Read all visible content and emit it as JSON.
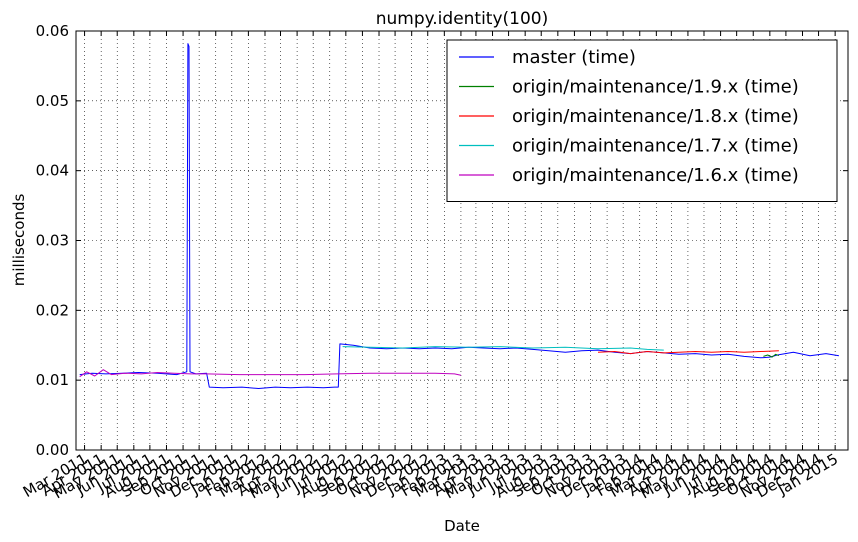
{
  "chart_data": {
    "type": "line",
    "title": "numpy.identity(100)",
    "xlabel": "Date",
    "ylabel": "milliseconds",
    "xlim": [
      "2011-02-13",
      "2015-01-25"
    ],
    "ylim": [
      0.0,
      0.06
    ],
    "y_ticks": [
      0.0,
      0.01,
      0.02,
      0.03,
      0.04,
      0.05,
      0.06
    ],
    "y_tick_labels": [
      "0.00",
      "0.01",
      "0.02",
      "0.03",
      "0.04",
      "0.05",
      "0.06"
    ],
    "x_ticks": [
      {
        "date": "2011-03-01",
        "label": "Mar 2011"
      },
      {
        "date": "2011-04-01",
        "label": "Apr 2011"
      },
      {
        "date": "2011-05-01",
        "label": "May 2011"
      },
      {
        "date": "2011-06-01",
        "label": "Jun 2011"
      },
      {
        "date": "2011-07-01",
        "label": "Jul 2011"
      },
      {
        "date": "2011-08-01",
        "label": "Aug 2011"
      },
      {
        "date": "2011-09-01",
        "label": "Sep 2011"
      },
      {
        "date": "2011-10-01",
        "label": "Oct 2011"
      },
      {
        "date": "2011-11-01",
        "label": "Nov 2011"
      },
      {
        "date": "2011-12-01",
        "label": "Dec 2011"
      },
      {
        "date": "2012-01-01",
        "label": "Jan 2012"
      },
      {
        "date": "2012-02-01",
        "label": "Feb 2012"
      },
      {
        "date": "2012-03-01",
        "label": "Mar 2012"
      },
      {
        "date": "2012-04-01",
        "label": "Apr 2012"
      },
      {
        "date": "2012-05-01",
        "label": "May 2012"
      },
      {
        "date": "2012-06-01",
        "label": "Jun 2012"
      },
      {
        "date": "2012-07-01",
        "label": "Jul 2012"
      },
      {
        "date": "2012-08-01",
        "label": "Aug 2012"
      },
      {
        "date": "2012-09-01",
        "label": "Sep 2012"
      },
      {
        "date": "2012-10-01",
        "label": "Oct 2012"
      },
      {
        "date": "2012-11-01",
        "label": "Nov 2012"
      },
      {
        "date": "2012-12-01",
        "label": "Dec 2012"
      },
      {
        "date": "2013-01-01",
        "label": "Jan 2013"
      },
      {
        "date": "2013-02-01",
        "label": "Feb 2013"
      },
      {
        "date": "2013-03-01",
        "label": "Mar 2013"
      },
      {
        "date": "2013-04-01",
        "label": "Apr 2013"
      },
      {
        "date": "2013-05-01",
        "label": "May 2013"
      },
      {
        "date": "2013-06-01",
        "label": "Jun 2013"
      },
      {
        "date": "2013-07-01",
        "label": "Jul 2013"
      },
      {
        "date": "2013-08-01",
        "label": "Aug 2013"
      },
      {
        "date": "2013-09-01",
        "label": "Sep 2013"
      },
      {
        "date": "2013-10-01",
        "label": "Oct 2013"
      },
      {
        "date": "2013-11-01",
        "label": "Nov 2013"
      },
      {
        "date": "2013-12-01",
        "label": "Dec 2013"
      },
      {
        "date": "2014-01-01",
        "label": "Jan 2014"
      },
      {
        "date": "2014-02-01",
        "label": "Feb 2014"
      },
      {
        "date": "2014-03-01",
        "label": "Mar 2014"
      },
      {
        "date": "2014-04-01",
        "label": "Apr 2014"
      },
      {
        "date": "2014-05-01",
        "label": "May 2014"
      },
      {
        "date": "2014-06-01",
        "label": "Jun 2014"
      },
      {
        "date": "2014-07-01",
        "label": "Jul 2014"
      },
      {
        "date": "2014-08-01",
        "label": "Aug 2014"
      },
      {
        "date": "2014-09-01",
        "label": "Sep 2014"
      },
      {
        "date": "2014-10-01",
        "label": "Oct 2014"
      },
      {
        "date": "2014-11-01",
        "label": "Nov 2014"
      },
      {
        "date": "2014-12-01",
        "label": "Dec 2014"
      },
      {
        "date": "2015-01-01",
        "label": "Jan 2015"
      }
    ],
    "grid": true,
    "legend_position": "top-right",
    "series": [
      {
        "name": "master (time)",
        "color": "#0000ff",
        "points": [
          [
            "2011-02-20",
            0.0108
          ],
          [
            "2011-03-15",
            0.011
          ],
          [
            "2011-04-10",
            0.0109
          ],
          [
            "2011-05-10",
            0.011
          ],
          [
            "2011-06-10",
            0.0111
          ],
          [
            "2011-07-15",
            0.011
          ],
          [
            "2011-08-20",
            0.0108
          ],
          [
            "2011-09-08",
            0.0112
          ],
          [
            "2011-09-10",
            0.0582
          ],
          [
            "2011-09-12",
            0.0578
          ],
          [
            "2011-09-14",
            0.0112
          ],
          [
            "2011-09-25",
            0.0109
          ],
          [
            "2011-10-15",
            0.011
          ],
          [
            "2011-10-20",
            0.009
          ],
          [
            "2011-11-15",
            0.0089
          ],
          [
            "2011-12-20",
            0.009
          ],
          [
            "2012-01-20",
            0.0088
          ],
          [
            "2012-02-20",
            0.009
          ],
          [
            "2012-03-20",
            0.0089
          ],
          [
            "2012-04-20",
            0.009
          ],
          [
            "2012-05-20",
            0.0089
          ],
          [
            "2012-06-10",
            0.009
          ],
          [
            "2012-06-17",
            0.009
          ],
          [
            "2012-06-20",
            0.0152
          ],
          [
            "2012-07-15",
            0.015
          ],
          [
            "2012-08-15",
            0.0146
          ],
          [
            "2012-09-15",
            0.0145
          ],
          [
            "2012-10-15",
            0.0146
          ],
          [
            "2012-11-15",
            0.0145
          ],
          [
            "2012-12-15",
            0.0146
          ],
          [
            "2013-01-15",
            0.0145
          ],
          [
            "2013-02-15",
            0.0147
          ],
          [
            "2013-03-15",
            0.0146
          ],
          [
            "2013-04-15",
            0.0145
          ],
          [
            "2013-05-15",
            0.0146
          ],
          [
            "2013-06-15",
            0.0144
          ],
          [
            "2013-07-15",
            0.0142
          ],
          [
            "2013-08-15",
            0.014
          ],
          [
            "2013-09-15",
            0.0142
          ],
          [
            "2013-10-15",
            0.0143
          ],
          [
            "2013-11-15",
            0.014
          ],
          [
            "2013-12-15",
            0.0138
          ],
          [
            "2014-01-15",
            0.0141
          ],
          [
            "2014-02-15",
            0.0139
          ],
          [
            "2014-03-15",
            0.0137
          ],
          [
            "2014-04-15",
            0.0138
          ],
          [
            "2014-05-15",
            0.0136
          ],
          [
            "2014-06-15",
            0.0137
          ],
          [
            "2014-07-15",
            0.0134
          ],
          [
            "2014-08-15",
            0.0132
          ],
          [
            "2014-09-01",
            0.0133
          ],
          [
            "2014-09-15",
            0.0136
          ],
          [
            "2014-10-15",
            0.014
          ],
          [
            "2014-11-15",
            0.0135
          ],
          [
            "2014-12-15",
            0.0138
          ],
          [
            "2015-01-08",
            0.0135
          ]
        ]
      },
      {
        "name": "origin/maintenance/1.9.x (time)",
        "color": "#008000",
        "points": [
          [
            "2014-08-20",
            0.0134
          ],
          [
            "2014-08-28",
            0.0136
          ],
          [
            "2014-09-05",
            0.0133
          ],
          [
            "2014-09-12",
            0.0137
          ],
          [
            "2014-09-18",
            0.0135
          ]
        ]
      },
      {
        "name": "origin/maintenance/1.8.x (time)",
        "color": "#ff0000",
        "points": [
          [
            "2013-10-15",
            0.014
          ],
          [
            "2013-11-15",
            0.0141
          ],
          [
            "2013-12-15",
            0.0138
          ],
          [
            "2014-01-15",
            0.0141
          ],
          [
            "2014-02-15",
            0.0139
          ],
          [
            "2014-03-15",
            0.014
          ],
          [
            "2014-04-15",
            0.0141
          ],
          [
            "2014-05-15",
            0.014
          ],
          [
            "2014-06-15",
            0.0141
          ],
          [
            "2014-07-15",
            0.014
          ],
          [
            "2014-08-15",
            0.0141
          ],
          [
            "2014-09-18",
            0.0142
          ]
        ]
      },
      {
        "name": "origin/maintenance/1.7.x (time)",
        "color": "#00bfbf",
        "points": [
          [
            "2012-06-25",
            0.0148
          ],
          [
            "2012-08-15",
            0.0147
          ],
          [
            "2012-10-15",
            0.0146
          ],
          [
            "2012-12-15",
            0.0148
          ],
          [
            "2013-02-15",
            0.0147
          ],
          [
            "2013-04-15",
            0.0148
          ],
          [
            "2013-06-15",
            0.0146
          ],
          [
            "2013-08-15",
            0.0147
          ],
          [
            "2013-10-15",
            0.0145
          ],
          [
            "2013-12-15",
            0.0146
          ],
          [
            "2014-01-15",
            0.0144
          ],
          [
            "2014-02-15",
            0.0143
          ]
        ]
      },
      {
        "name": "origin/maintenance/1.6.x (time)",
        "color": "#bf00bf",
        "points": [
          [
            "2011-02-20",
            0.0105
          ],
          [
            "2011-03-05",
            0.0112
          ],
          [
            "2011-03-20",
            0.0106
          ],
          [
            "2011-04-05",
            0.0115
          ],
          [
            "2011-04-20",
            0.0108
          ],
          [
            "2011-05-15",
            0.011
          ],
          [
            "2011-06-15",
            0.0109
          ],
          [
            "2011-07-15",
            0.0111
          ],
          [
            "2011-08-15",
            0.011
          ],
          [
            "2011-09-15",
            0.0109
          ],
          [
            "2011-10-15",
            0.0109
          ],
          [
            "2011-12-15",
            0.0108
          ],
          [
            "2012-02-15",
            0.0108
          ],
          [
            "2012-04-15",
            0.0108
          ],
          [
            "2012-06-15",
            0.0109
          ],
          [
            "2012-08-15",
            0.011
          ],
          [
            "2012-10-15",
            0.011
          ],
          [
            "2012-12-15",
            0.011
          ],
          [
            "2013-01-20",
            0.0109
          ],
          [
            "2013-02-01",
            0.0107
          ]
        ]
      }
    ]
  }
}
